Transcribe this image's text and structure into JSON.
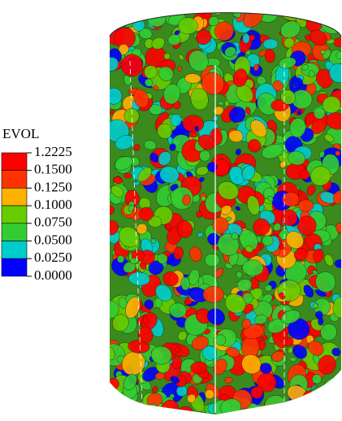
{
  "legend": {
    "title": "EVOL",
    "labels": [
      "1.2225",
      "0.1500",
      "0.1250",
      "0.1000",
      "0.0750",
      "0.0500",
      "0.0250",
      "0.0000"
    ],
    "colors": [
      "#ff0000",
      "#ff3300",
      "#ffb000",
      "#66cc00",
      "#33cc33",
      "#00cccc",
      "#0000ff"
    ]
  }
}
